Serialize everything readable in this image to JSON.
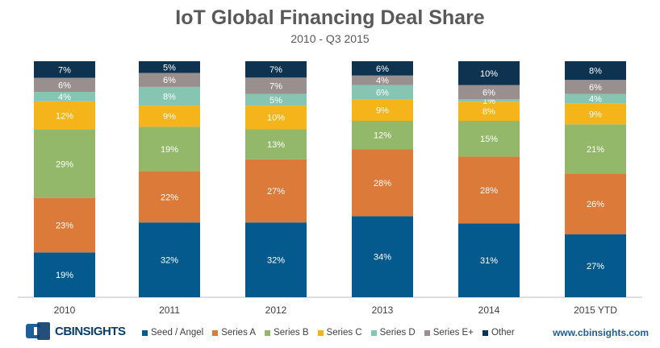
{
  "chart_data": {
    "type": "bar",
    "stacked": true,
    "percent": true,
    "title": "IoT Global Financing Deal Share",
    "subtitle": "2010 - Q3 2015",
    "categories": [
      "2010",
      "2011",
      "2012",
      "2013",
      "2014",
      "2015 YTD"
    ],
    "series": [
      {
        "name": "Seed / Angel",
        "color": "#045a8d",
        "values": [
          19,
          32,
          32,
          34,
          31,
          27
        ],
        "labels": [
          "19%",
          "32%",
          "32%",
          "34%",
          "31%",
          "27%"
        ]
      },
      {
        "name": "Series A",
        "color": "#dc7a3a",
        "values": [
          23,
          22,
          27,
          28,
          28,
          26
        ],
        "labels": [
          "23%",
          "22%",
          "27%",
          "28%",
          "28%",
          "26%"
        ]
      },
      {
        "name": "Series B",
        "color": "#93b86a",
        "values": [
          29,
          19,
          13,
          12,
          15,
          21
        ],
        "labels": [
          "29%",
          "19%",
          "13%",
          "12%",
          "15%",
          "21%"
        ]
      },
      {
        "name": "Series C",
        "color": "#f4b41a",
        "values": [
          12,
          9,
          10,
          9,
          8,
          9
        ],
        "labels": [
          "12%",
          "9%",
          "10%",
          "9%",
          "8%",
          "9%"
        ]
      },
      {
        "name": "Series D",
        "color": "#86c5b1",
        "values": [
          4,
          8,
          5,
          6,
          1,
          4
        ],
        "labels": [
          "4%",
          "8%",
          "5%",
          "6%",
          "1%",
          "4%"
        ]
      },
      {
        "name": "Series E+",
        "color": "#9a8f8f",
        "values": [
          6,
          6,
          7,
          4,
          6,
          6
        ],
        "labels": [
          "6%",
          "6%",
          "7%",
          "4%",
          "6%",
          "6%"
        ]
      },
      {
        "name": "Other",
        "color": "#0d3350",
        "values": [
          7,
          5,
          7,
          6,
          10,
          8
        ],
        "labels": [
          "7%",
          "5%",
          "7%",
          "6%",
          "10%",
          "8%"
        ]
      }
    ],
    "ylim": [
      0,
      100
    ],
    "grid": false,
    "legend_position": "bottom"
  },
  "branding": {
    "logo_cb": "CB",
    "logo_text": "INSIGHTS",
    "website": "www.cbinsights.com"
  }
}
